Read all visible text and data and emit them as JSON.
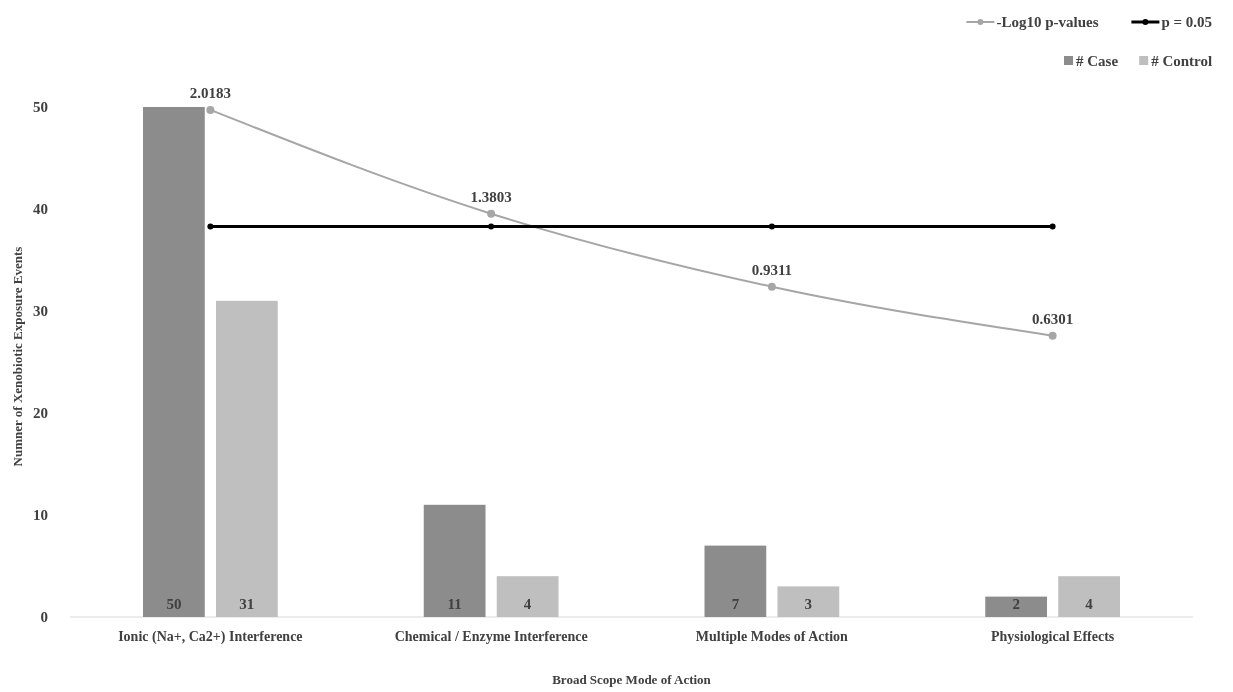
{
  "chart_data": {
    "type": "bar",
    "xlabel": "Broad Scope Mode of Action",
    "ylabel": "Numner of Xenobiotic Exposure Events",
    "categories": [
      "Ionic (Na+, Ca2+) Interference",
      "Chemical / Enzyme Interference",
      "Multiple Modes of Action",
      "Physiological Effects"
    ],
    "series": [
      {
        "name": "# Case",
        "color": "#8c8c8c",
        "values": [
          50,
          11,
          7,
          2
        ],
        "value_labels": [
          "50",
          "11",
          "7",
          "2"
        ]
      },
      {
        "name": "# Control",
        "color": "#bfbfbf",
        "values": [
          31,
          4,
          3,
          4
        ],
        "value_labels": [
          "31",
          "4",
          "3",
          "4"
        ]
      },
      {
        "name": "-Log10 p-values",
        "type": "line",
        "axis": "y2",
        "color": "#a6a6a6",
        "marker": "circle",
        "values": [
          2.0183,
          1.3803,
          0.9311,
          0.6301
        ],
        "value_labels": [
          "2.0183",
          "1.3803",
          "0.9311",
          "0.6301"
        ]
      },
      {
        "name": "p = 0.05",
        "type": "line",
        "axis": "y2",
        "color": "#000000",
        "marker": "circle",
        "values": [
          1.301,
          1.301,
          1.301,
          1.301
        ]
      }
    ],
    "ylim": [
      0,
      55
    ],
    "yticks": [
      0,
      10,
      20,
      30,
      40,
      50
    ],
    "y2lim": [
      -1.1,
      2.35
    ],
    "legend": "top right",
    "grid": false
  }
}
